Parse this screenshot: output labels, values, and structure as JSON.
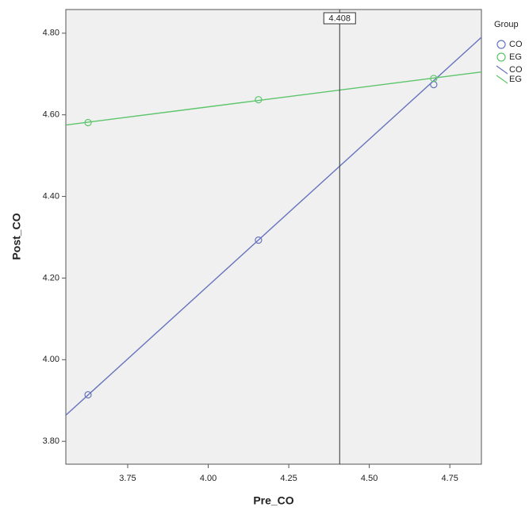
{
  "chart_data": {
    "type": "scatter",
    "x_label": "Pre_CO",
    "y_label": "Post_CO",
    "legend_title": "Group",
    "xlim": [
      3.558,
      4.848
    ],
    "ylim": [
      3.744,
      4.858
    ],
    "xticks": [
      3.75,
      {
        "value": 4.0,
        "label": "4.00"
      },
      4.25,
      {
        "value": 4.5,
        "label": "4.50"
      },
      4.75
    ],
    "yticks": [
      {
        "value": 3.8,
        "label": "3.80"
      },
      {
        "value": 4.0,
        "label": "4.00"
      },
      {
        "value": 4.2,
        "label": "4.20"
      },
      {
        "value": 4.4,
        "label": "4.40"
      },
      {
        "value": 4.6,
        "label": "4.60"
      },
      {
        "value": 4.8,
        "label": "4.80"
      }
    ],
    "series": [
      {
        "name": "CO",
        "color": "#6673bd",
        "x": [
          3.627,
          4.156,
          4.7
        ],
        "values": [
          3.914,
          4.293,
          4.674
        ]
      },
      {
        "name": "EG",
        "color": "#5cc56a",
        "x": [
          3.627,
          4.156,
          4.7
        ],
        "values": [
          4.581,
          4.637,
          4.689
        ]
      }
    ],
    "fit_lines": [
      {
        "name": "CO",
        "color": "#6673bd",
        "x": [
          3.558,
          4.848
        ],
        "values": [
          3.864,
          4.79
        ]
      },
      {
        "name": "EG",
        "color": "#5cc56a",
        "x": [
          3.558,
          4.848
        ],
        "values": [
          4.575,
          4.705
        ]
      }
    ],
    "reference_line": 4.408
  }
}
